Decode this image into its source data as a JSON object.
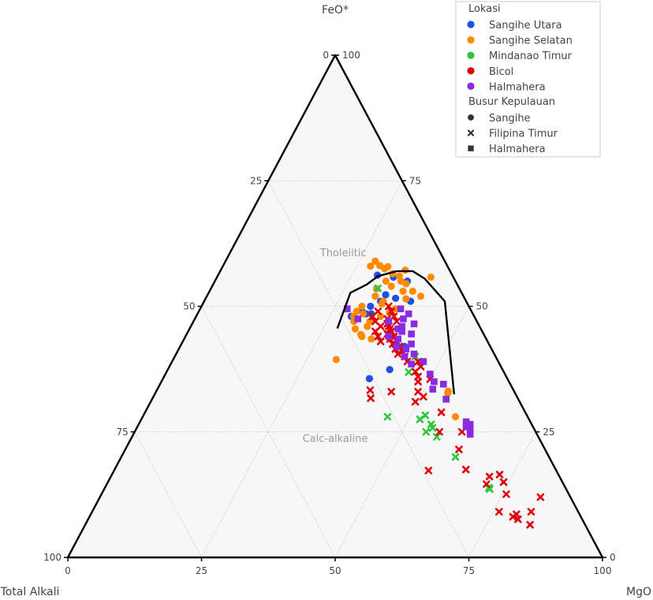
{
  "chart_data": {
    "type": "ternary-scatter",
    "title": "",
    "axes": {
      "top": "FeO*",
      "left": "Total Alkali",
      "right": "MgO"
    },
    "ticks": [
      "0",
      "25",
      "50",
      "75",
      "100"
    ],
    "grid": true,
    "regions": [
      "Tholeiitic",
      "Calc-alkaline"
    ],
    "boundary_line": [
      {
        "a": 45.6,
        "b": 27.6
      },
      {
        "a": 52.7,
        "b": 26.5
      },
      {
        "a": 54.3,
        "b": 28.7
      },
      {
        "a": 56.0,
        "b": 30.0
      },
      {
        "a": 57.0,
        "b": 33.0
      },
      {
        "a": 57.0,
        "b": 36.0
      },
      {
        "a": 55.5,
        "b": 39.0
      },
      {
        "a": 51.0,
        "b": 45.0
      },
      {
        "a": 32.5,
        "b": 56.0
      }
    ],
    "legend": {
      "position": "top-right",
      "location_title": "Lokasi",
      "locations": [
        {
          "name": "Sangihe Utara",
          "color": "#1f4fe6"
        },
        {
          "name": "Sangihe Selatan",
          "color": "#ff8a00"
        },
        {
          "name": "Mindanao Timur",
          "color": "#2ac93c"
        },
        {
          "name": "Bicol",
          "color": "#e0000a"
        },
        {
          "name": "Halmahera",
          "color": "#8a2be2"
        }
      ],
      "arc_title": "Busur Kepulauan",
      "arcs": [
        {
          "name": "Sangihe",
          "marker": "circle"
        },
        {
          "name": "Filipina Timur",
          "marker": "x"
        },
        {
          "name": "Halmahera",
          "marker": "square"
        }
      ]
    },
    "series": [
      {
        "name": "Sangihe Utara",
        "arc": "Sangihe",
        "color": "#1f4fe6",
        "points": [
          {
            "a": 56.2,
            "b": 29.8
          },
          {
            "a": 55.8,
            "b": 33.0
          },
          {
            "a": 55.0,
            "b": 36.0
          },
          {
            "a": 52.3,
            "b": 33.3
          },
          {
            "a": 51.6,
            "b": 35.5
          },
          {
            "a": 51.0,
            "b": 38.6
          },
          {
            "a": 50.0,
            "b": 31.6
          },
          {
            "a": 49.0,
            "b": 30.5
          },
          {
            "a": 48.5,
            "b": 31.5
          },
          {
            "a": 48.0,
            "b": 29.0
          },
          {
            "a": 48.5,
            "b": 32.5
          },
          {
            "a": 51.0,
            "b": 33.0
          },
          {
            "a": 42.0,
            "b": 42.0
          },
          {
            "a": 37.4,
            "b": 41.5
          },
          {
            "a": 35.6,
            "b": 38.6
          }
        ]
      },
      {
        "name": "Sangihe Selatan",
        "arc": "Sangihe",
        "color": "#ff8a00",
        "points": [
          {
            "a": 59.0,
            "b": 28.0
          },
          {
            "a": 58.0,
            "b": 27.6
          },
          {
            "a": 57.5,
            "b": 30.5
          },
          {
            "a": 57.2,
            "b": 34.5
          },
          {
            "a": 56.5,
            "b": 32.5
          },
          {
            "a": 56.0,
            "b": 34.0
          },
          {
            "a": 55.0,
            "b": 32.0
          },
          {
            "a": 54.5,
            "b": 36.0
          },
          {
            "a": 54.0,
            "b": 33.5
          },
          {
            "a": 53.5,
            "b": 31.0
          },
          {
            "a": 53.0,
            "b": 36.2
          },
          {
            "a": 52.0,
            "b": 31.5
          },
          {
            "a": 51.0,
            "b": 33.5
          },
          {
            "a": 50.0,
            "b": 30.0
          },
          {
            "a": 50.5,
            "b": 33.5
          },
          {
            "a": 49.0,
            "b": 29.5
          },
          {
            "a": 48.5,
            "b": 31.0
          },
          {
            "a": 49.5,
            "b": 36.5
          },
          {
            "a": 48.0,
            "b": 29.5
          },
          {
            "a": 47.0,
            "b": 33.0
          },
          {
            "a": 48.0,
            "b": 34.5
          },
          {
            "a": 46.0,
            "b": 33.0
          },
          {
            "a": 45.5,
            "b": 31.0
          },
          {
            "a": 53.0,
            "b": 38.0
          },
          {
            "a": 52.0,
            "b": 40.0
          },
          {
            "a": 51.5,
            "b": 37.5
          },
          {
            "a": 55.8,
            "b": 40.0
          },
          {
            "a": 47.0,
            "b": 30.0
          },
          {
            "a": 44.0,
            "b": 33.0
          },
          {
            "a": 43.5,
            "b": 35.0
          },
          {
            "a": 39.4,
            "b": 30.5
          },
          {
            "a": 57.9,
            "b": 30.9
          },
          {
            "a": 58.1,
            "b": 29.3
          },
          {
            "a": 55.0,
            "b": 34.8
          },
          {
            "a": 48.7,
            "b": 35.8
          },
          {
            "a": 44.4,
            "b": 32.6
          },
          {
            "a": 32.7,
            "b": 54.7
          },
          {
            "a": 33.1,
            "b": 54.6
          },
          {
            "a": 28.0,
            "b": 58.5
          }
        ]
      },
      {
        "name": "Mindanao Timur",
        "arc": "Filipina Timur",
        "color": "#2ac93c",
        "points": [
          {
            "a": 53.6,
            "b": 31.2
          },
          {
            "a": 40.0,
            "b": 45.0
          },
          {
            "a": 36.9,
            "b": 45.3
          },
          {
            "a": 28.3,
            "b": 52.7
          },
          {
            "a": 28.0,
            "b": 45.8
          },
          {
            "a": 26.5,
            "b": 54.7
          },
          {
            "a": 27.5,
            "b": 52.1
          },
          {
            "a": 25.8,
            "b": 55.3
          },
          {
            "a": 25.0,
            "b": 54.5
          },
          {
            "a": 24.0,
            "b": 57.0
          },
          {
            "a": 20.0,
            "b": 62.5
          },
          {
            "a": 13.6,
            "b": 72.1
          },
          {
            "a": 13.9,
            "b": 71.8
          }
        ]
      },
      {
        "name": "Bicol",
        "arc": "Filipina Timur",
        "color": "#e0000a",
        "points": [
          {
            "a": 50.0,
            "b": 35.0
          },
          {
            "a": 49.0,
            "b": 36.0
          },
          {
            "a": 48.0,
            "b": 37.0
          },
          {
            "a": 47.0,
            "b": 38.0
          },
          {
            "a": 46.0,
            "b": 37.0
          },
          {
            "a": 45.0,
            "b": 38.0
          },
          {
            "a": 45.0,
            "b": 35.0
          },
          {
            "a": 44.0,
            "b": 39.0
          },
          {
            "a": 43.0,
            "b": 40.0
          },
          {
            "a": 42.0,
            "b": 41.0
          },
          {
            "a": 41.0,
            "b": 42.0
          },
          {
            "a": 43.0,
            "b": 37.0
          },
          {
            "a": 44.0,
            "b": 36.0
          },
          {
            "a": 46.0,
            "b": 35.5
          },
          {
            "a": 47.0,
            "b": 34.0
          },
          {
            "a": 48.0,
            "b": 33.0
          },
          {
            "a": 49.0,
            "b": 33.5
          },
          {
            "a": 47.5,
            "b": 36.0
          },
          {
            "a": 46.5,
            "b": 36.5
          },
          {
            "a": 45.5,
            "b": 37.5
          },
          {
            "a": 44.5,
            "b": 37.5
          },
          {
            "a": 43.5,
            "b": 38.5
          },
          {
            "a": 42.5,
            "b": 39.5
          },
          {
            "a": 41.5,
            "b": 40.5
          },
          {
            "a": 40.5,
            "b": 41.5
          },
          {
            "a": 40.0,
            "b": 43.0
          },
          {
            "a": 39.0,
            "b": 44.0
          },
          {
            "a": 39.0,
            "b": 46.0
          },
          {
            "a": 38.0,
            "b": 47.0
          },
          {
            "a": 37.0,
            "b": 46.5
          },
          {
            "a": 36.0,
            "b": 47.5
          },
          {
            "a": 35.0,
            "b": 48.0
          },
          {
            "a": 35.5,
            "b": 50.0
          },
          {
            "a": 33.0,
            "b": 49.0
          },
          {
            "a": 32.0,
            "b": 50.5
          },
          {
            "a": 33.0,
            "b": 44.0
          },
          {
            "a": 33.3,
            "b": 39.9
          },
          {
            "a": 31.7,
            "b": 40.8
          },
          {
            "a": 31.0,
            "b": 49.5
          },
          {
            "a": 25.0,
            "b": 61.2
          },
          {
            "a": 21.5,
            "b": 62.4
          },
          {
            "a": 16.1,
            "b": 70.8
          },
          {
            "a": 17.5,
            "b": 65.7
          },
          {
            "a": 8.6,
            "b": 79.6
          },
          {
            "a": 7.6,
            "b": 80.4
          },
          {
            "a": 6.5,
            "b": 83.2
          },
          {
            "a": 9.1,
            "b": 76.1
          },
          {
            "a": 9.1,
            "b": 82.1
          },
          {
            "a": 8.1,
            "b": 79.2
          },
          {
            "a": 12.0,
            "b": 82.4
          },
          {
            "a": 12.6,
            "b": 75.7
          },
          {
            "a": 14.6,
            "b": 71.0
          },
          {
            "a": 15.0,
            "b": 74.0
          },
          {
            "a": 16.5,
            "b": 72.5
          },
          {
            "a": 25.0,
            "b": 57.0
          },
          {
            "a": 17.3,
            "b": 58.8
          },
          {
            "a": 28.9,
            "b": 55.4
          }
        ]
      },
      {
        "name": "Halmahera",
        "arc": "Halmahera",
        "color": "#8a2be2",
        "points": [
          {
            "a": 49.5,
            "b": 27.5
          },
          {
            "a": 47.5,
            "b": 30.5
          },
          {
            "a": 47.0,
            "b": 36.5
          },
          {
            "a": 46.5,
            "b": 41.5
          },
          {
            "a": 45.5,
            "b": 39.0
          },
          {
            "a": 44.5,
            "b": 42.0
          },
          {
            "a": 44.0,
            "b": 38.0
          },
          {
            "a": 43.5,
            "b": 40.0
          },
          {
            "a": 42.5,
            "b": 43.0
          },
          {
            "a": 42.0,
            "b": 40.5
          },
          {
            "a": 41.5,
            "b": 42.5
          },
          {
            "a": 40.5,
            "b": 44.5
          },
          {
            "a": 40.0,
            "b": 43.0
          },
          {
            "a": 39.0,
            "b": 47.0
          },
          {
            "a": 38.5,
            "b": 45.0
          },
          {
            "a": 36.5,
            "b": 49.5
          },
          {
            "a": 35.0,
            "b": 51.0
          },
          {
            "a": 34.5,
            "b": 53.0
          },
          {
            "a": 33.5,
            "b": 51.5
          },
          {
            "a": 31.5,
            "b": 55.0
          },
          {
            "a": 27.0,
            "b": 61.0
          },
          {
            "a": 26.5,
            "b": 62.0
          },
          {
            "a": 26.0,
            "b": 61.5
          },
          {
            "a": 25.5,
            "b": 62.5
          },
          {
            "a": 24.5,
            "b": 63.0
          },
          {
            "a": 49.5,
            "b": 37.5
          },
          {
            "a": 48.5,
            "b": 39.5
          },
          {
            "a": 47.5,
            "b": 39.0
          },
          {
            "a": 46.0,
            "b": 39.5
          },
          {
            "a": 45.0,
            "b": 40.0
          }
        ]
      }
    ]
  }
}
